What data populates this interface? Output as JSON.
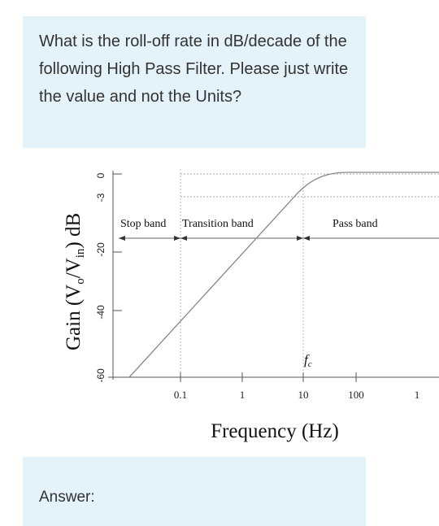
{
  "question": {
    "text": "What is the roll-off rate in dB/decade of the following High Pass Filter. Please just write the value and not the Units?"
  },
  "figure": {
    "y_axis_label_main": "Gain (V",
    "y_axis_label_sub_o": "o",
    "y_axis_label_mid": "/V",
    "y_axis_label_sub_in": "in",
    "y_axis_label_end": ") dB",
    "x_axis_label": "Frequency (Hz)",
    "cutoff_label": "f",
    "cutoff_label_sub": "c",
    "bands": {
      "stop": "Stop band",
      "transition": "Transition band",
      "pass": "Pass band"
    }
  },
  "chart_data": {
    "type": "line",
    "title": "",
    "xlabel": "Frequency (Hz)",
    "ylabel": "Gain (Vo/Vin) dB",
    "x_scale": "log",
    "x_ticks": [
      "0.1",
      "1",
      "10",
      "100",
      "1"
    ],
    "y_ticks": [
      "0",
      "-3",
      "-20",
      "-40",
      "-60"
    ],
    "ylim": [
      -60,
      0
    ],
    "series": [
      {
        "x": [
          0.02,
          10,
          20,
          1000
        ],
        "y": [
          -60,
          -3,
          0,
          0
        ]
      }
    ],
    "annotations": [
      "Stop band",
      "Transition band",
      "Pass band",
      "fc"
    ]
  },
  "answer": {
    "label": "Answer:"
  },
  "colors": {
    "panel_bg": "#e4f2f9",
    "text": "#333333",
    "plot_line": "#888888",
    "axis": "#555555"
  }
}
